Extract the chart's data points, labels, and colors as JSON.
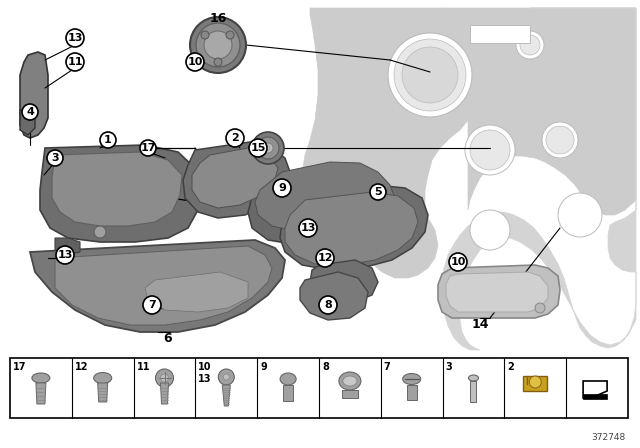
{
  "bg_color": "#ffffff",
  "diagram_number": "372748",
  "part_color_dark": "#808080",
  "part_color_mid": "#a0a0a0",
  "part_color_light": "#c0c0c0",
  "part_color_very_light": "#d4d4d4",
  "firewall_color": "#cccccc",
  "firewall_edge": "#aaaaaa",
  "label_fontsize": 8.5,
  "legend_items": [
    "17",
    "12",
    "11",
    "10\n13",
    "9",
    "8",
    "7",
    "3",
    "2",
    ""
  ]
}
